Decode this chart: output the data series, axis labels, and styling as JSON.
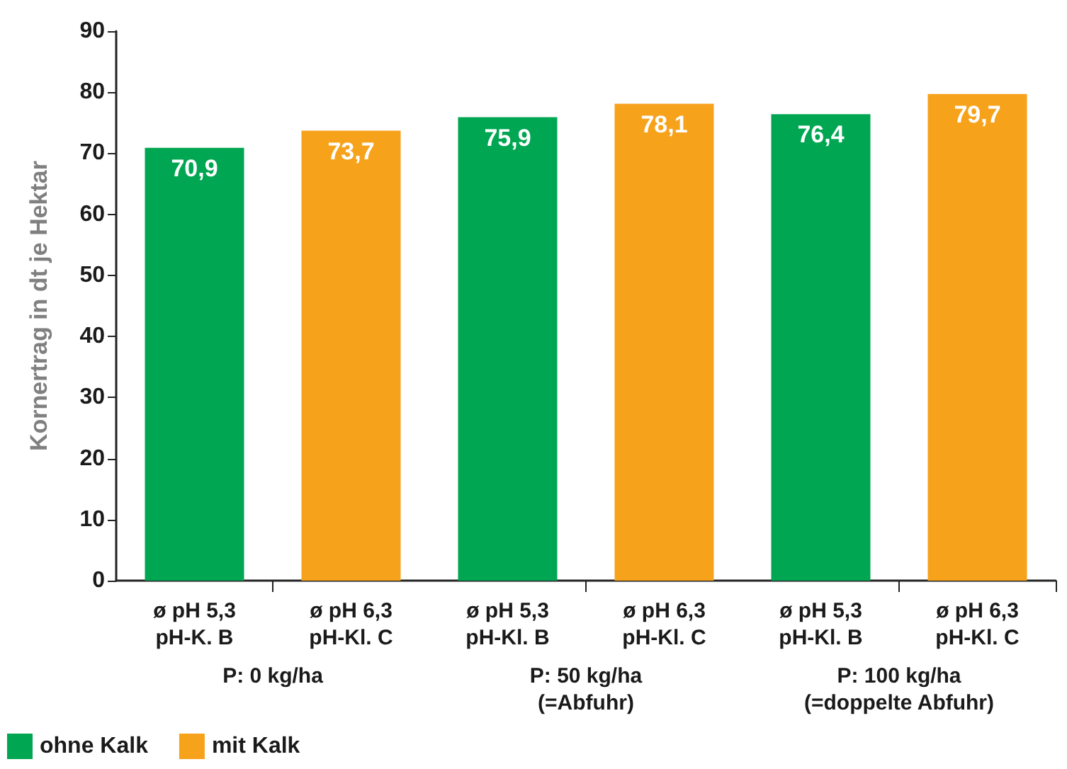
{
  "chart_data": {
    "type": "bar",
    "ylabel": "Kornertrag in dt je Hektar",
    "categories": [
      "ø pH 5,3\npH-K. B",
      "ø pH 6,3\npH-Kl. C",
      "ø pH 5,3\npH-Kl. B",
      "ø pH 6,3\npH-Kl. C",
      "ø pH 5,3\npH-Kl. B",
      "ø pH 6,3\npH-Kl. C"
    ],
    "series": [
      {
        "name": "ohne Kalk",
        "color": "#00a651",
        "values": [
          70.9,
          null,
          75.9,
          null,
          76.4,
          null
        ],
        "value_labels": [
          "70,9",
          null,
          "75,9",
          null,
          "76,4",
          null
        ]
      },
      {
        "name": "mit Kalk",
        "color": "#f7a21b",
        "values": [
          null,
          73.7,
          null,
          78.1,
          null,
          79.7
        ],
        "value_labels": [
          null,
          "73,7",
          null,
          "78,1",
          null,
          "79,7"
        ]
      }
    ],
    "stacked": true,
    "annotations": [
      "P: 0 kg/ha",
      "P: 50 kg/ha\n(=Abfuhr)",
      "P: 100 kg/ha\n(=doppelte Abfuhr)"
    ],
    "ylim": [
      0,
      90
    ],
    "yticks": [
      0,
      10,
      20,
      30,
      40,
      50,
      60,
      70,
      80,
      90
    ],
    "grid": false,
    "legend": "bottom left"
  }
}
